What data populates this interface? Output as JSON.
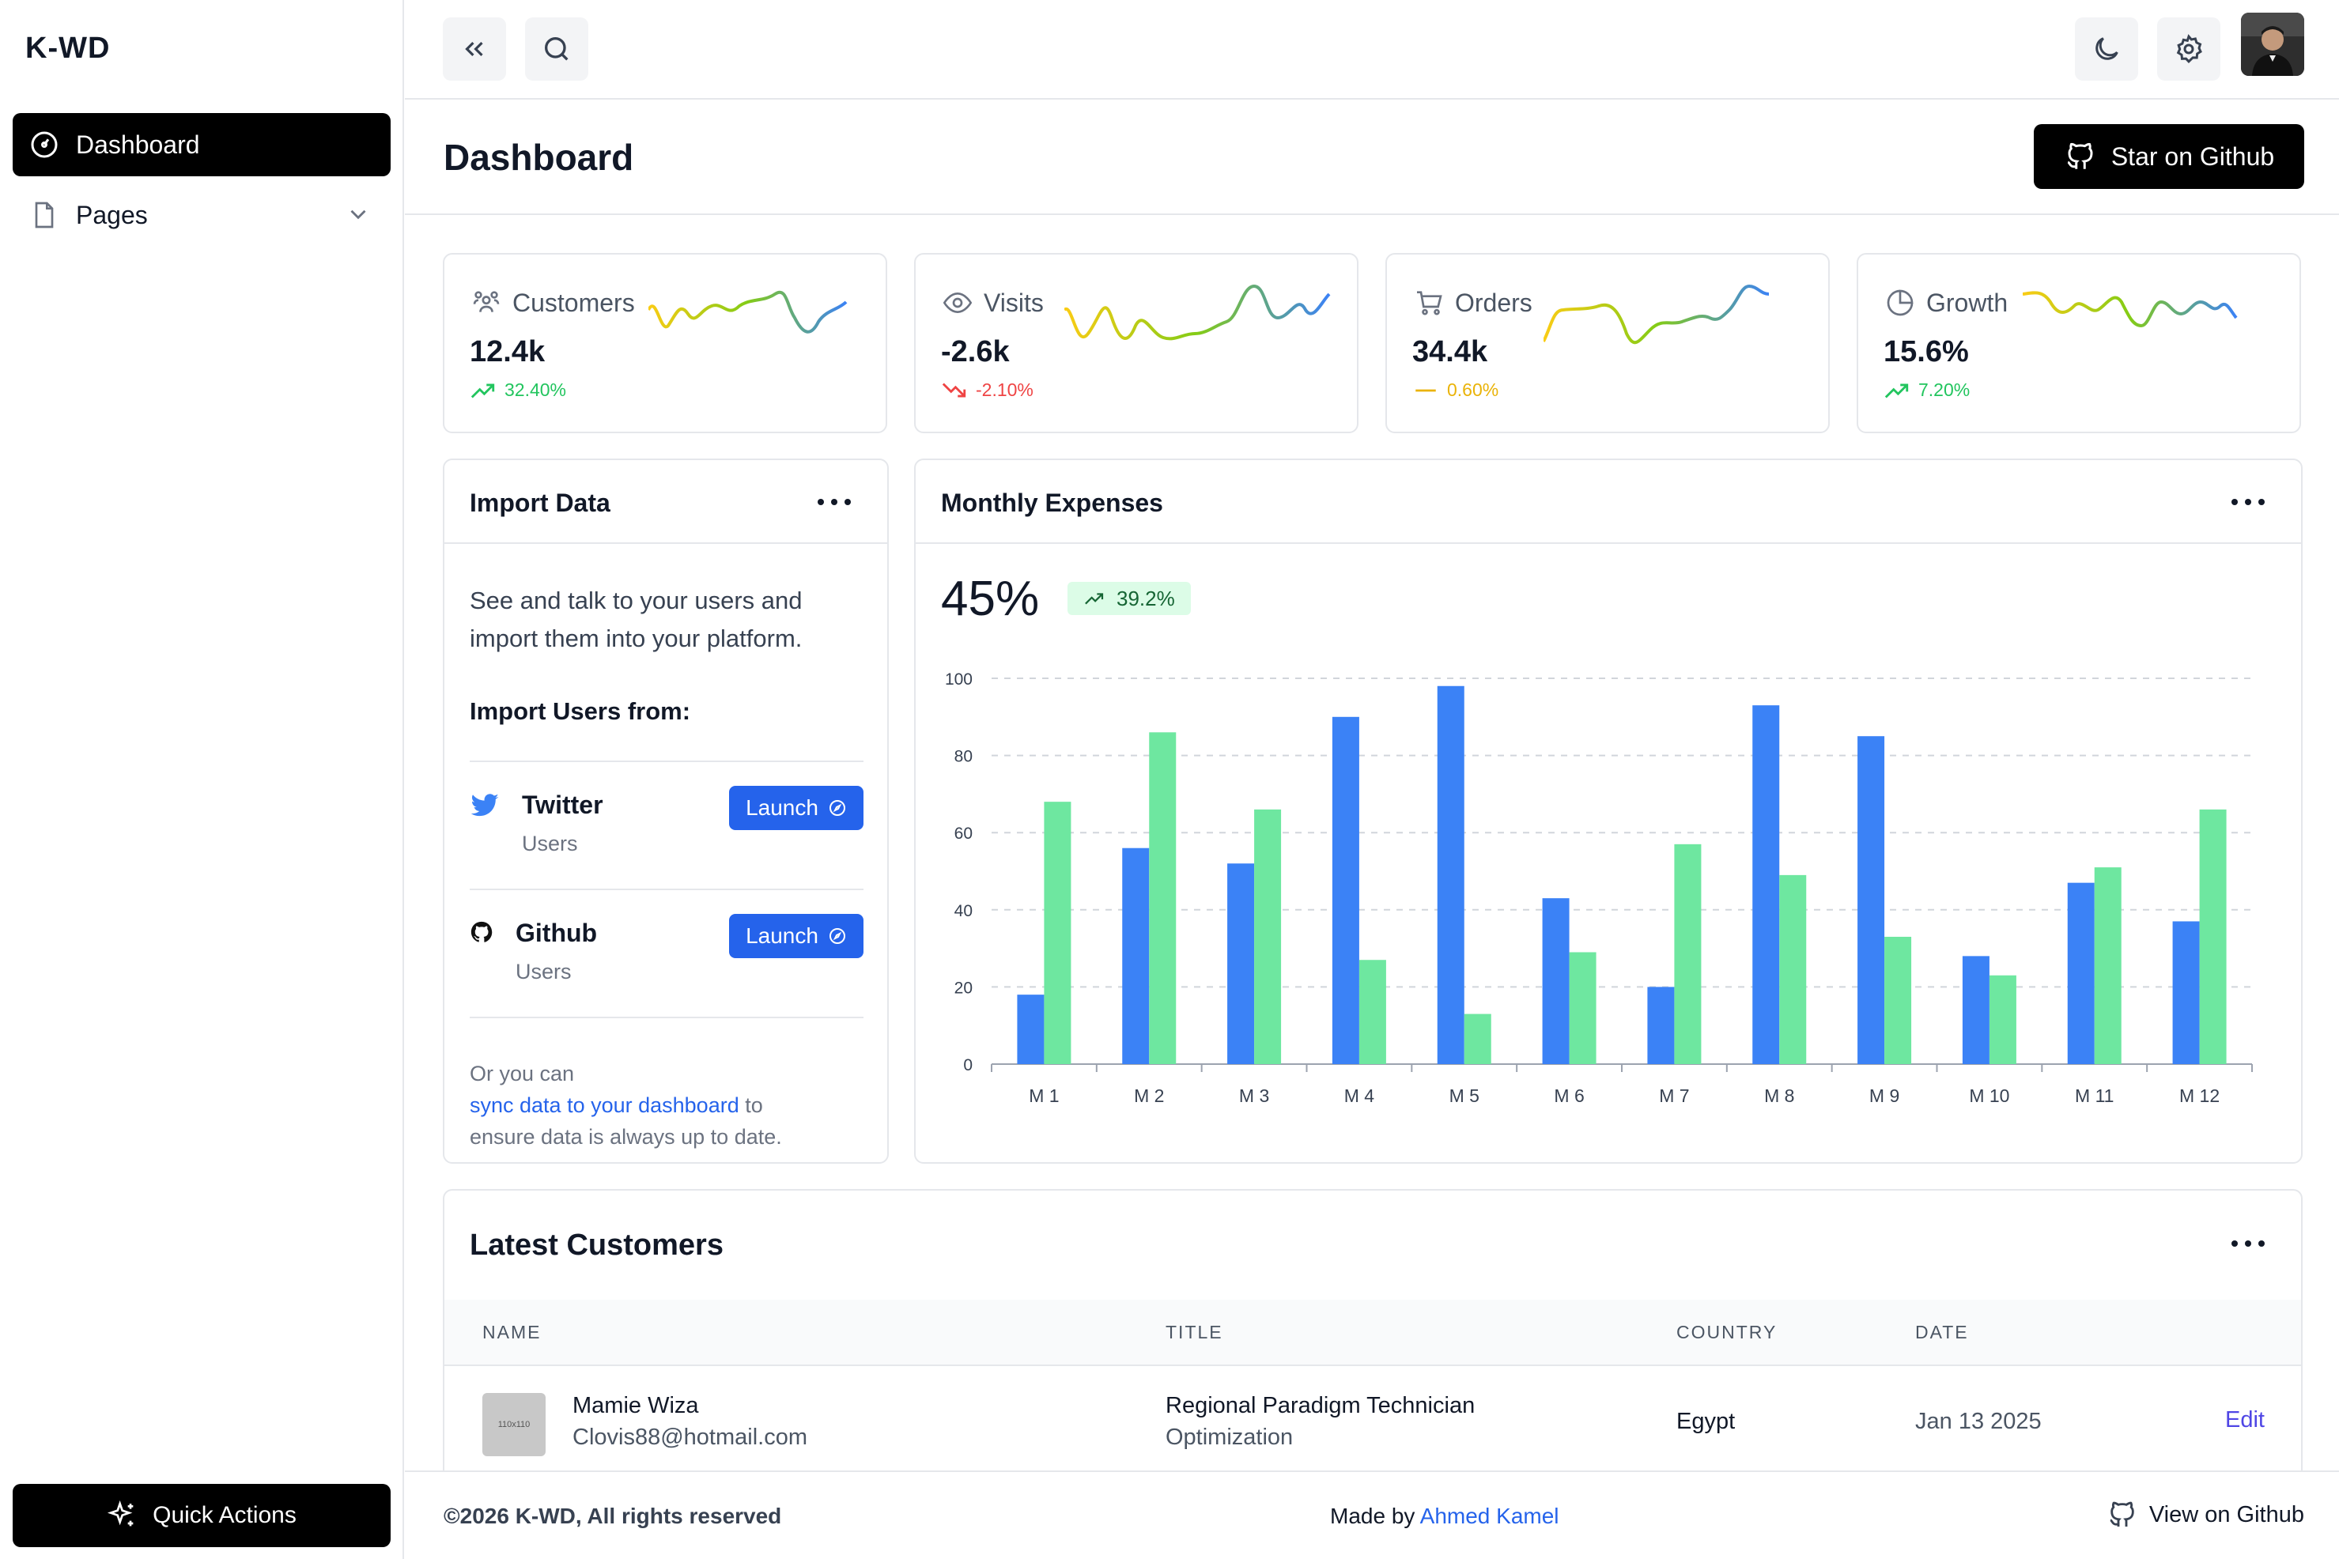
{
  "sidebar": {
    "brand": "K-WD",
    "items": [
      {
        "label": "Dashboard",
        "icon": "dashboard-icon"
      },
      {
        "label": "Pages",
        "icon": "file-icon"
      }
    ],
    "quick_actions": "Quick Actions"
  },
  "header": {
    "title": "Dashboard",
    "star_button": "Star on Github"
  },
  "stats": [
    {
      "label": "Customers",
      "value": "12.4k",
      "delta": "32.40%",
      "trend": "up"
    },
    {
      "label": "Visits",
      "value": "-2.6k",
      "delta": "-2.10%",
      "trend": "down"
    },
    {
      "label": "Orders",
      "value": "34.4k",
      "delta": "0.60%",
      "trend": "flat"
    },
    {
      "label": "Growth",
      "value": "15.6%",
      "delta": "7.20%",
      "trend": "up"
    }
  ],
  "import": {
    "title": "Import Data",
    "description": "See and talk to your users and import them into your platform.",
    "subtitle": "Import Users from:",
    "sources": [
      {
        "name": "Twitter",
        "sub": "Users",
        "button": "Launch"
      },
      {
        "name": "Github",
        "sub": "Users",
        "button": "Launch"
      }
    ],
    "footer_prefix": "Or you can",
    "footer_link": "sync data to your dashboard",
    "footer_suffix_1": " to",
    "footer_suffix_2": "ensure data is always up to date."
  },
  "expenses": {
    "title": "Monthly Expenses",
    "big_value": "45%",
    "pill": "39.2%"
  },
  "chart_data": {
    "type": "bar",
    "categories": [
      "M 1",
      "M 2",
      "M 3",
      "M 4",
      "M 5",
      "M 6",
      "M 7",
      "M 8",
      "M 9",
      "M 10",
      "M 11",
      "M 12"
    ],
    "series": [
      {
        "values": [
          18,
          56,
          52,
          90,
          98,
          43,
          20,
          93,
          85,
          28,
          47,
          37
        ],
        "color": "#3b82f6"
      },
      {
        "values": [
          68,
          86,
          66,
          27,
          13,
          29,
          57,
          49,
          33,
          23,
          51,
          66
        ],
        "color": "#6ee7a0"
      }
    ],
    "ylim": [
      0,
      100
    ],
    "yticks": [
      0,
      20,
      40,
      60,
      80,
      100
    ],
    "grid": true
  },
  "customers": {
    "title": "Latest Customers",
    "columns": [
      "NAME",
      "TITLE",
      "COUNTRY",
      "DATE"
    ],
    "rows": [
      {
        "thumb": "110x110",
        "name": "Mamie Wiza",
        "email": "Clovis88@hotmail.com",
        "title": "Regional Paradigm Technician",
        "title_sub": "Optimization",
        "country": "Egypt",
        "date": "Jan 13 2025",
        "action": "Edit"
      }
    ]
  },
  "footer": {
    "copyright": "©2026 K-WD, All rights reserved",
    "made_by": "Made by",
    "author": "Ahmed Kamel",
    "github": "View on Github"
  },
  "colors": {
    "accent": "#2563eb",
    "success": "#22c55e",
    "danger": "#ef4444",
    "warning": "#eab308"
  }
}
